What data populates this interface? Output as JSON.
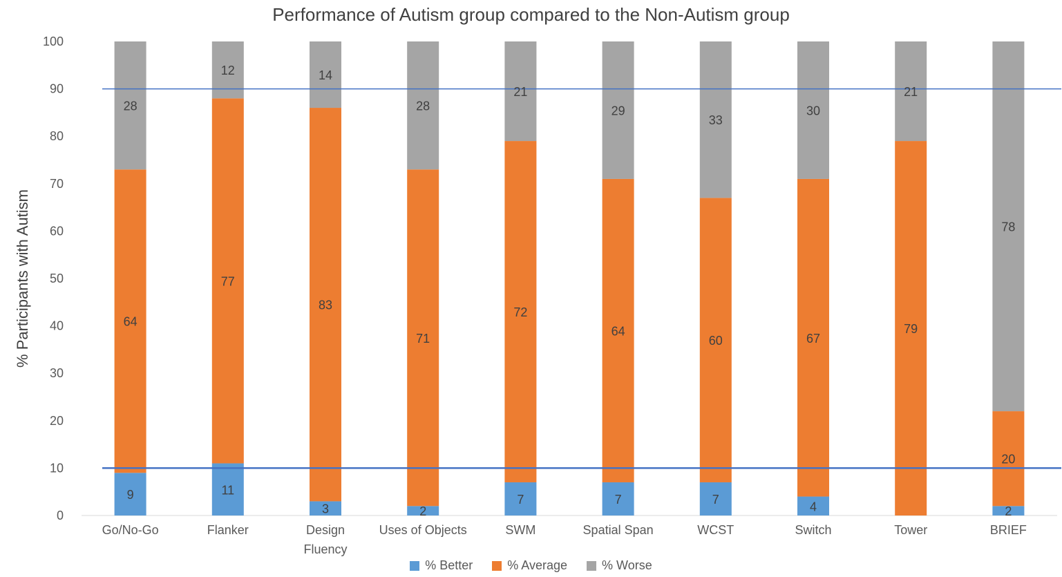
{
  "chart_data": {
    "type": "bar",
    "stacked": true,
    "title": "Performance of Autism group compared to the Non-Autism group",
    "xlabel": "",
    "ylabel": "% Participants with Autism",
    "ylim": [
      0,
      100
    ],
    "yticks": [
      0,
      10,
      20,
      30,
      40,
      50,
      60,
      70,
      80,
      90,
      100
    ],
    "grid": false,
    "legend_position": "bottom",
    "categories": [
      [
        "Go/No-Go"
      ],
      [
        "Flanker"
      ],
      [
        "Design",
        "Fluency"
      ],
      [
        "Uses of Objects"
      ],
      [
        "SWM"
      ],
      [
        "Spatial Span"
      ],
      [
        "WCST"
      ],
      [
        "Switch"
      ],
      [
        "Tower"
      ],
      [
        "BRIEF"
      ]
    ],
    "series": [
      {
        "name": "% Better",
        "color": "#5b9bd5",
        "values": [
          9,
          11,
          3,
          2,
          7,
          7,
          7,
          4,
          0,
          2
        ],
        "labels": [
          "9",
          "11",
          "3",
          "2",
          "7",
          "7",
          "7",
          "4",
          "",
          "2"
        ]
      },
      {
        "name": "% Average",
        "color": "#ed7d31",
        "values": [
          64,
          77,
          83,
          71,
          72,
          64,
          60,
          67,
          79,
          20
        ],
        "labels": [
          "64",
          "77",
          "83",
          "71",
          "72",
          "64",
          "60",
          "67",
          "79",
          "20"
        ]
      },
      {
        "name": "% Worse",
        "color": "#a5a5a5",
        "values": [
          28,
          12,
          14,
          28,
          21,
          29,
          33,
          30,
          21,
          78
        ],
        "labels": [
          "28",
          "12",
          "14",
          "28",
          "21",
          "29",
          "33",
          "30",
          "21",
          "78"
        ]
      }
    ],
    "reference_lines": [
      {
        "y": 90,
        "color": "#4472c4"
      },
      {
        "y": 10,
        "color": "#4472c4"
      }
    ]
  }
}
